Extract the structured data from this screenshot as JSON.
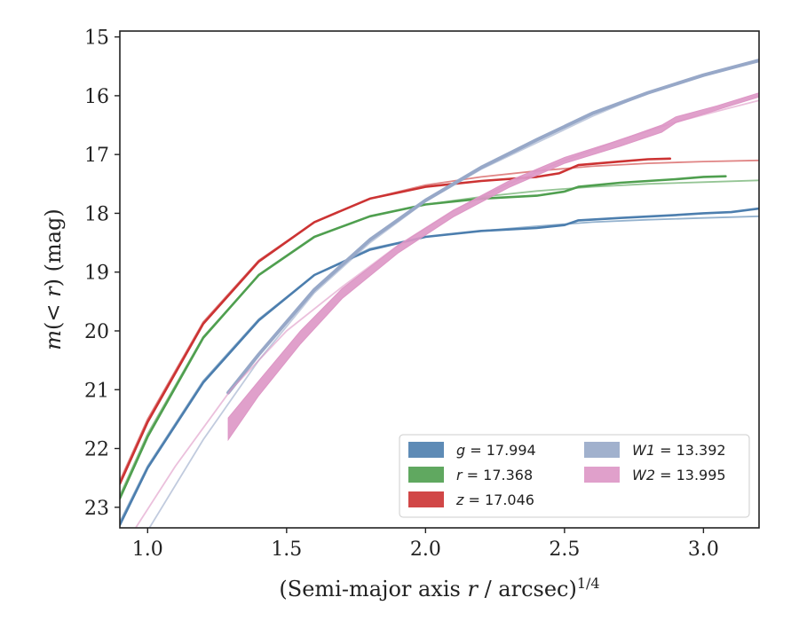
{
  "chart_data": {
    "type": "line",
    "xlabel": "(Semi-major axis r / arcsec)^1/4",
    "ylabel": "m(< r) (mag)",
    "xlim": [
      0.9,
      3.2
    ],
    "ylim": [
      23.35,
      14.9
    ],
    "y_inverted": true,
    "x_ticks": [
      1.0,
      1.5,
      2.0,
      2.5,
      3.0
    ],
    "x_tick_labels": [
      "1.0",
      "1.5",
      "2.0",
      "2.5",
      "3.0"
    ],
    "y_ticks": [
      15,
      16,
      17,
      18,
      19,
      20,
      21,
      22,
      23
    ],
    "y_tick_labels": [
      "15",
      "16",
      "17",
      "18",
      "19",
      "20",
      "21",
      "22",
      "23"
    ],
    "grid": false,
    "legend_position": "lower-right",
    "legend": [
      {
        "band": "g",
        "label": "g = 17.994",
        "color": "#4c7eae"
      },
      {
        "band": "r",
        "label": "r = 17.368",
        "color": "#4f9f4f"
      },
      {
        "band": "z",
        "label": "z = 17.046",
        "color": "#cc3333"
      },
      {
        "band": "W1",
        "label": "W1 = 13.392",
        "color": "#97a8c8"
      },
      {
        "band": "W2",
        "label": "W2 = 13.995",
        "color": "#dd96c5"
      }
    ],
    "series": [
      {
        "name": "g",
        "kind": "model",
        "color": "#4c7eae",
        "x": [
          0.9,
          1.0,
          1.2,
          1.4,
          1.6,
          1.8,
          2.0,
          2.2,
          2.4,
          2.6,
          2.8,
          3.0,
          3.2
        ],
        "y": [
          23.25,
          22.3,
          20.85,
          19.8,
          19.05,
          18.6,
          18.4,
          18.3,
          18.22,
          18.15,
          18.11,
          18.08,
          18.05
        ]
      },
      {
        "name": "g",
        "kind": "data",
        "color": "#4c7eae",
        "x": [
          0.9,
          1.0,
          1.2,
          1.4,
          1.6,
          1.8,
          2.0,
          2.2,
          2.4,
          2.5,
          2.55,
          2.7,
          2.9,
          3.0,
          3.1,
          3.2
        ],
        "y": [
          23.3,
          22.33,
          20.88,
          19.82,
          19.05,
          18.62,
          18.4,
          18.3,
          18.25,
          18.2,
          18.12,
          18.08,
          18.03,
          18.0,
          17.98,
          17.92
        ]
      },
      {
        "name": "r",
        "kind": "model",
        "color": "#4f9f4f",
        "x": [
          0.9,
          1.0,
          1.2,
          1.4,
          1.6,
          1.8,
          2.0,
          2.2,
          2.4,
          2.6,
          2.8,
          3.0,
          3.2
        ],
        "y": [
          22.8,
          21.75,
          20.1,
          19.05,
          18.4,
          18.05,
          17.85,
          17.72,
          17.62,
          17.55,
          17.5,
          17.47,
          17.44
        ]
      },
      {
        "name": "r",
        "kind": "data",
        "color": "#4f9f4f",
        "x": [
          0.9,
          1.0,
          1.2,
          1.4,
          1.6,
          1.8,
          2.0,
          2.2,
          2.4,
          2.5,
          2.55,
          2.7,
          2.9,
          3.0,
          3.08
        ],
        "y": [
          22.85,
          21.8,
          20.12,
          19.05,
          18.4,
          18.05,
          17.85,
          17.75,
          17.7,
          17.63,
          17.55,
          17.48,
          17.42,
          17.38,
          17.37
        ]
      },
      {
        "name": "z",
        "kind": "model",
        "color": "#cc3333",
        "x": [
          0.9,
          1.0,
          1.2,
          1.4,
          1.6,
          1.8,
          2.0,
          2.2,
          2.4,
          2.6,
          2.8,
          3.0,
          3.2
        ],
        "y": [
          22.55,
          21.5,
          19.85,
          18.8,
          18.15,
          17.75,
          17.52,
          17.38,
          17.28,
          17.2,
          17.15,
          17.12,
          17.1
        ]
      },
      {
        "name": "z",
        "kind": "data",
        "color": "#cc3333",
        "x": [
          0.9,
          1.0,
          1.2,
          1.4,
          1.6,
          1.8,
          2.0,
          2.2,
          2.4,
          2.48,
          2.55,
          2.7,
          2.8,
          2.88
        ],
        "y": [
          22.6,
          21.55,
          19.88,
          18.82,
          18.15,
          17.75,
          17.55,
          17.45,
          17.38,
          17.32,
          17.18,
          17.12,
          17.08,
          17.07
        ]
      },
      {
        "name": "W1",
        "kind": "model",
        "color": "#97a8c8",
        "x": [
          1.0,
          1.2,
          1.4,
          1.6,
          1.8,
          2.0,
          2.2,
          2.4,
          2.6,
          2.8,
          3.0,
          3.2
        ],
        "y": [
          23.4,
          21.85,
          20.5,
          19.35,
          18.5,
          17.8,
          17.25,
          16.8,
          16.35,
          15.95,
          15.65,
          15.42
        ]
      },
      {
        "name": "W1",
        "kind": "data",
        "color": "#97a8c8",
        "x": [
          1.29,
          1.4,
          1.6,
          1.8,
          2.0,
          2.2,
          2.4,
          2.6,
          2.8,
          3.0,
          3.2
        ],
        "y": [
          21.05,
          20.4,
          19.3,
          18.45,
          17.78,
          17.22,
          16.75,
          16.3,
          15.95,
          15.65,
          15.4
        ],
        "band_width": 0.12
      },
      {
        "name": "W2",
        "kind": "model",
        "color": "#dd96c5",
        "x": [
          0.95,
          1.1,
          1.3,
          1.5,
          1.7,
          1.9,
          2.1,
          2.3,
          2.5,
          2.7,
          2.9,
          3.1,
          3.2
        ],
        "y": [
          23.4,
          22.3,
          21.0,
          20.0,
          19.25,
          18.55,
          17.95,
          17.5,
          17.1,
          16.75,
          16.45,
          16.2,
          16.08
        ]
      },
      {
        "name": "W2",
        "kind": "data",
        "color": "#dd96c5",
        "x": [
          1.29,
          1.4,
          1.55,
          1.7,
          1.9,
          2.1,
          2.3,
          2.5,
          2.7,
          2.85,
          2.9,
          3.05,
          3.2
        ],
        "y": [
          21.65,
          20.95,
          20.1,
          19.35,
          18.6,
          18.0,
          17.5,
          17.1,
          16.8,
          16.55,
          16.4,
          16.2,
          15.98
        ],
        "band_upper": [
          21.48,
          20.85,
          20.0,
          19.28,
          18.55,
          17.95,
          17.45,
          17.05,
          16.75,
          16.5,
          16.36,
          16.17,
          15.95
        ],
        "band_lower": [
          21.85,
          21.1,
          20.22,
          19.45,
          18.68,
          18.06,
          17.56,
          17.15,
          16.86,
          16.62,
          16.46,
          16.24,
          16.02
        ]
      }
    ]
  }
}
